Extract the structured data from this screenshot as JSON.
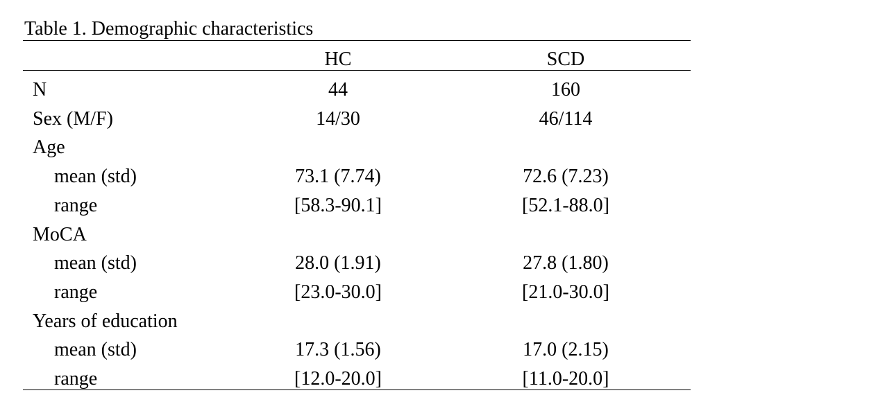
{
  "title": "Table 1. Demographic characteristics",
  "table": {
    "columns": [
      "HC",
      "SCD"
    ],
    "rows": [
      {
        "label": "N",
        "values": [
          44,
          160
        ]
      },
      {
        "label": "Sex (M/F)",
        "values": [
          "14/30",
          "46/114"
        ]
      },
      {
        "label": "Age",
        "subrows": [
          {
            "label": "mean (std)",
            "values": [
              "73.1 (7.74)",
              "72.6 (7.23)"
            ]
          },
          {
            "label": "range",
            "values": [
              "[58.3-90.1]",
              "[52.1-88.0]"
            ]
          }
        ]
      },
      {
        "label": "MoCA",
        "subrows": [
          {
            "label": "mean (std)",
            "values": [
              "28.0 (1.91)",
              "27.8 (1.80)"
            ]
          },
          {
            "label": "range",
            "values": [
              "[23.0-30.0]",
              "[21.0-30.0]"
            ]
          }
        ]
      },
      {
        "label": "Years of education",
        "subrows": [
          {
            "label": "mean (std)",
            "values": [
              "17.3 (1.56)",
              "17.0 (2.15)"
            ]
          },
          {
            "label": "range",
            "values": [
              "[12.0-20.0]",
              "[11.0-20.0]"
            ]
          }
        ]
      }
    ]
  }
}
